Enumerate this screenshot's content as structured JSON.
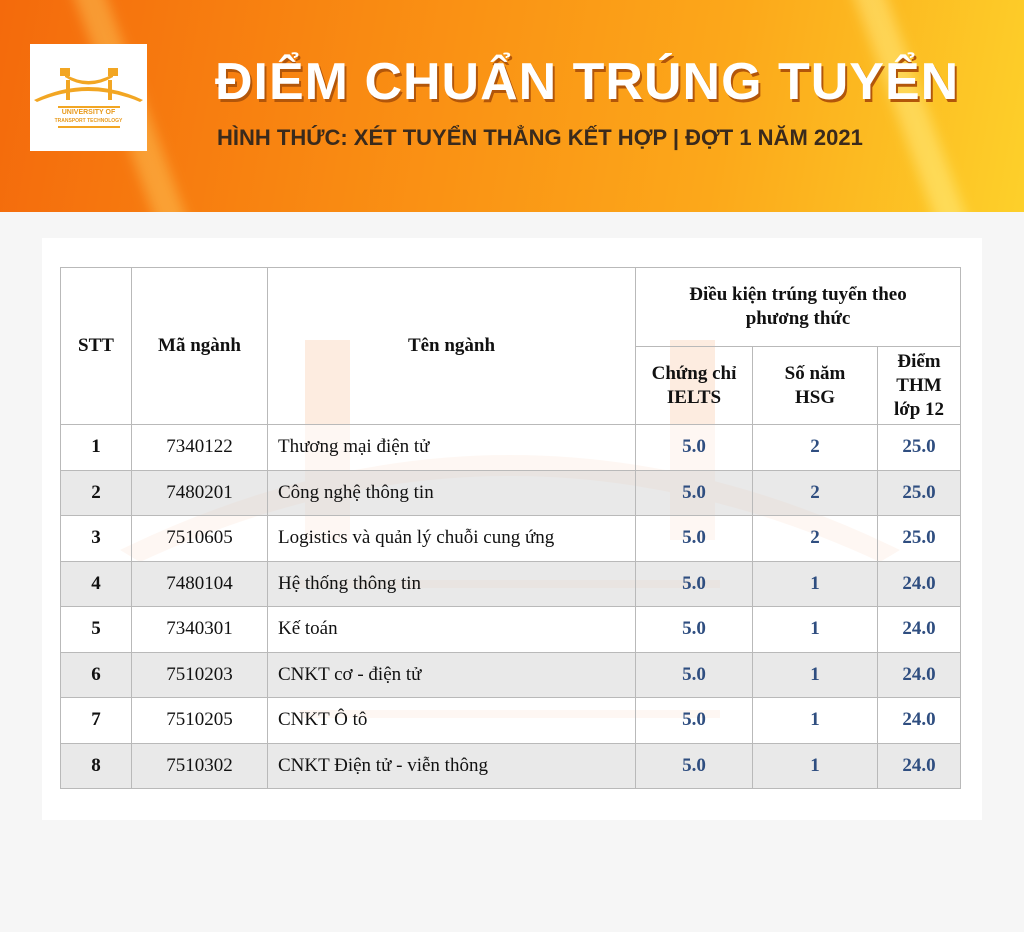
{
  "header": {
    "title": "ĐIỂM CHUẨN TRÚNG TUYỂN",
    "subtitle": "HÌNH THỨC: XÉT TUYỂN THẲNG KẾT HỢP | ĐỢT 1 NĂM 2021",
    "logo_text": [
      "UNIVERSITY OF",
      "TRANSPORT TECHNOLOGY"
    ]
  },
  "colors": {
    "accent": "#f98a12",
    "value_text": "#2f4e80"
  },
  "table": {
    "headers": {
      "stt": "STT",
      "code": "Mã ngành",
      "name": "Tên ngành",
      "group": "Điều kiện trúng tuyển theo phương thức",
      "ielts": "Chứng chỉ IELTS",
      "hsg": "Số năm HSG",
      "thm": "Điểm THM lớp 12"
    },
    "rows": [
      {
        "stt": "1",
        "code": "7340122",
        "name": "Thương mại điện tử",
        "ielts": "5.0",
        "hsg": "2",
        "thm": "25.0"
      },
      {
        "stt": "2",
        "code": "7480201",
        "name": "Công nghệ thông tin",
        "ielts": "5.0",
        "hsg": "2",
        "thm": "25.0"
      },
      {
        "stt": "3",
        "code": "7510605",
        "name": "Logistics và quản lý chuỗi cung ứng",
        "ielts": "5.0",
        "hsg": "2",
        "thm": "25.0"
      },
      {
        "stt": "4",
        "code": "7480104",
        "name": "Hệ thống thông tin",
        "ielts": "5.0",
        "hsg": "1",
        "thm": "24.0"
      },
      {
        "stt": "5",
        "code": "7340301",
        "name": "Kế toán",
        "ielts": "5.0",
        "hsg": "1",
        "thm": "24.0"
      },
      {
        "stt": "6",
        "code": "7510203",
        "name": "CNKT cơ - điện tử",
        "ielts": "5.0",
        "hsg": "1",
        "thm": "24.0"
      },
      {
        "stt": "7",
        "code": "7510205",
        "name": "CNKT Ô tô",
        "ielts": "5.0",
        "hsg": "1",
        "thm": "24.0"
      },
      {
        "stt": "8",
        "code": "7510302",
        "name": "CNKT Điện tử - viễn thông",
        "ielts": "5.0",
        "hsg": "1",
        "thm": "24.0"
      }
    ]
  }
}
